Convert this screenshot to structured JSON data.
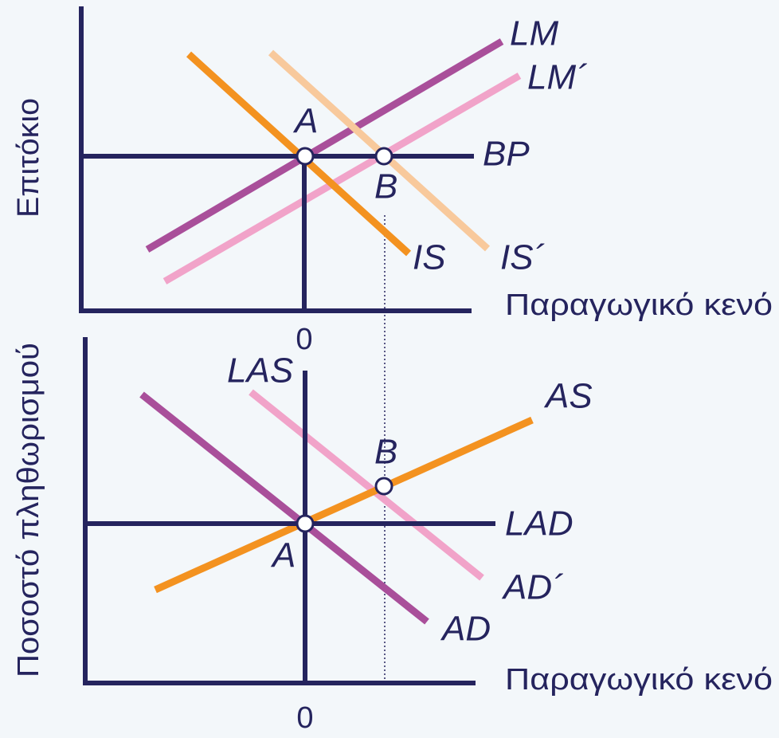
{
  "top_panel": {
    "y_axis_label": "Επιτόκιο",
    "x_axis_label": "Παραγωγικό κενό",
    "origin_label": "0",
    "curves": [
      "LM",
      "LM´",
      "BP",
      "IS",
      "IS´"
    ],
    "points": [
      "A",
      "B"
    ]
  },
  "bottom_panel": {
    "y_axis_label": "Ποσοστό πληθωρισμού",
    "x_axis_label": "Παραγωγικό κενό",
    "origin_label": "0",
    "curves": [
      "LAS",
      "AS",
      "LAD",
      "AD´",
      "AD"
    ],
    "points": [
      "A",
      "B"
    ]
  }
}
